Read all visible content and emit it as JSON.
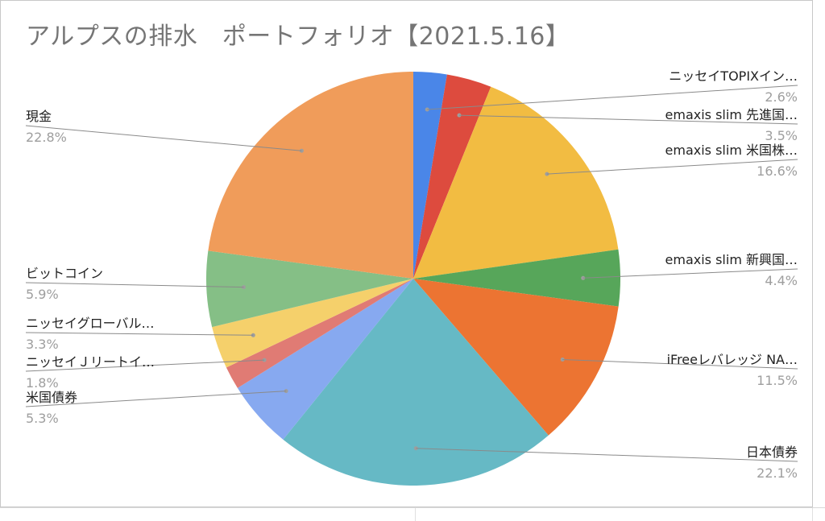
{
  "chart_data": {
    "type": "pie",
    "title": "アルプスの排水　ポートフォリオ【2021.5.16】",
    "slices": [
      {
        "name": "ニッセイTOPIXイン…",
        "value": 2.6,
        "pct_label": "2.6%",
        "color": "#4a86e8",
        "side": "right"
      },
      {
        "name": "emaxis slim 先進国…",
        "value": 3.5,
        "pct_label": "3.5%",
        "color": "#dd4b3e",
        "side": "right"
      },
      {
        "name": "emaxis slim 米国株…",
        "value": 16.6,
        "pct_label": "16.6%",
        "color": "#f2bc42",
        "side": "right"
      },
      {
        "name": "emaxis slim 新興国…",
        "value": 4.4,
        "pct_label": "4.4%",
        "color": "#57a65a",
        "side": "right"
      },
      {
        "name": "iFreeレバレッジ NA…",
        "value": 11.5,
        "pct_label": "11.5%",
        "color": "#ec7432",
        "side": "right"
      },
      {
        "name": "日本債券",
        "value": 22.1,
        "pct_label": "22.1%",
        "color": "#66b9c5",
        "side": "right"
      },
      {
        "name": "米国債券",
        "value": 5.3,
        "pct_label": "5.3%",
        "color": "#87a9f0",
        "side": "left"
      },
      {
        "name": "ニッセイＪリートイ…",
        "value": 1.8,
        "pct_label": "1.8%",
        "color": "#e07b74",
        "side": "left"
      },
      {
        "name": "ニッセイグローバル…",
        "value": 3.3,
        "pct_label": "3.3%",
        "color": "#f5d06b",
        "side": "left"
      },
      {
        "name": "ビットコイン",
        "value": 5.9,
        "pct_label": "5.9%",
        "color": "#85bf86",
        "side": "left"
      },
      {
        "name": "現金",
        "value": 22.8,
        "pct_label": "22.8%",
        "color": "#f09c5a",
        "side": "left"
      }
    ]
  }
}
